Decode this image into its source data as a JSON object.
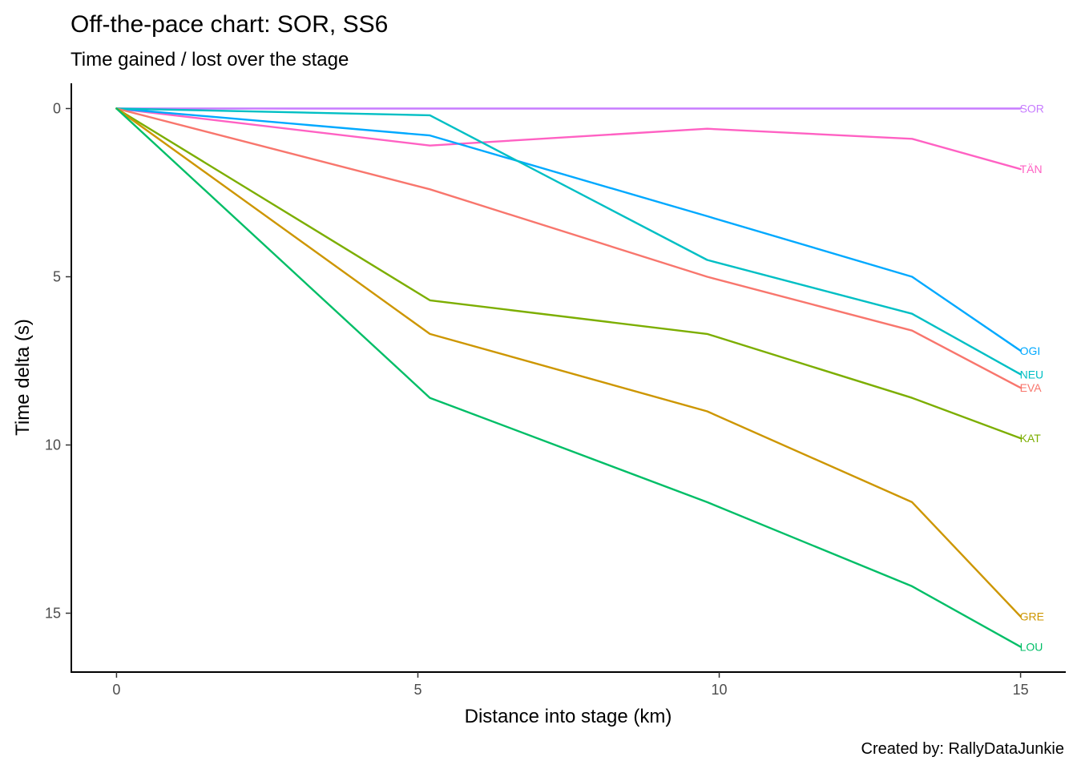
{
  "chart_data": {
    "type": "line",
    "title": "Off-the-pace chart: SOR, SS6",
    "subtitle": "Time gained / lost over the stage",
    "xlabel": "Distance into stage (km)",
    "ylabel": "Time delta (s)",
    "caption": "Created by: RallyDataJunkie",
    "x": [
      0,
      5.2,
      9.8,
      13.2,
      15.0
    ],
    "xlim": [
      -0.75,
      15.75
    ],
    "ylim": [
      16.75,
      -0.75
    ],
    "y_reversed": true,
    "x_ticks": [
      0,
      5,
      10,
      15
    ],
    "y_ticks": [
      0,
      5,
      10,
      15
    ],
    "grid": false,
    "legend": "none",
    "series": [
      {
        "name": "SOR",
        "color": "#C77CFF",
        "values": [
          0,
          0,
          0,
          0,
          0
        ]
      },
      {
        "name": "TÄN",
        "color": "#FF61C3",
        "values": [
          0,
          1.1,
          0.6,
          0.9,
          1.8
        ]
      },
      {
        "name": "OGI",
        "color": "#00A9FF",
        "values": [
          0,
          0.8,
          3.2,
          5.0,
          7.2
        ]
      },
      {
        "name": "NEU",
        "color": "#00BFC4",
        "values": [
          0,
          0.2,
          4.5,
          6.1,
          7.9
        ]
      },
      {
        "name": "EVA",
        "color": "#F8766D",
        "values": [
          0,
          2.4,
          5.0,
          6.6,
          8.3
        ]
      },
      {
        "name": "KAT",
        "color": "#7CAE00",
        "values": [
          0,
          5.7,
          6.7,
          8.6,
          9.8
        ]
      },
      {
        "name": "GRE",
        "color": "#CD9600",
        "values": [
          0,
          6.7,
          9.0,
          11.7,
          15.1
        ]
      },
      {
        "name": "LOU",
        "color": "#00BE67",
        "values": [
          0,
          8.6,
          11.7,
          14.2,
          16.0
        ]
      }
    ]
  }
}
